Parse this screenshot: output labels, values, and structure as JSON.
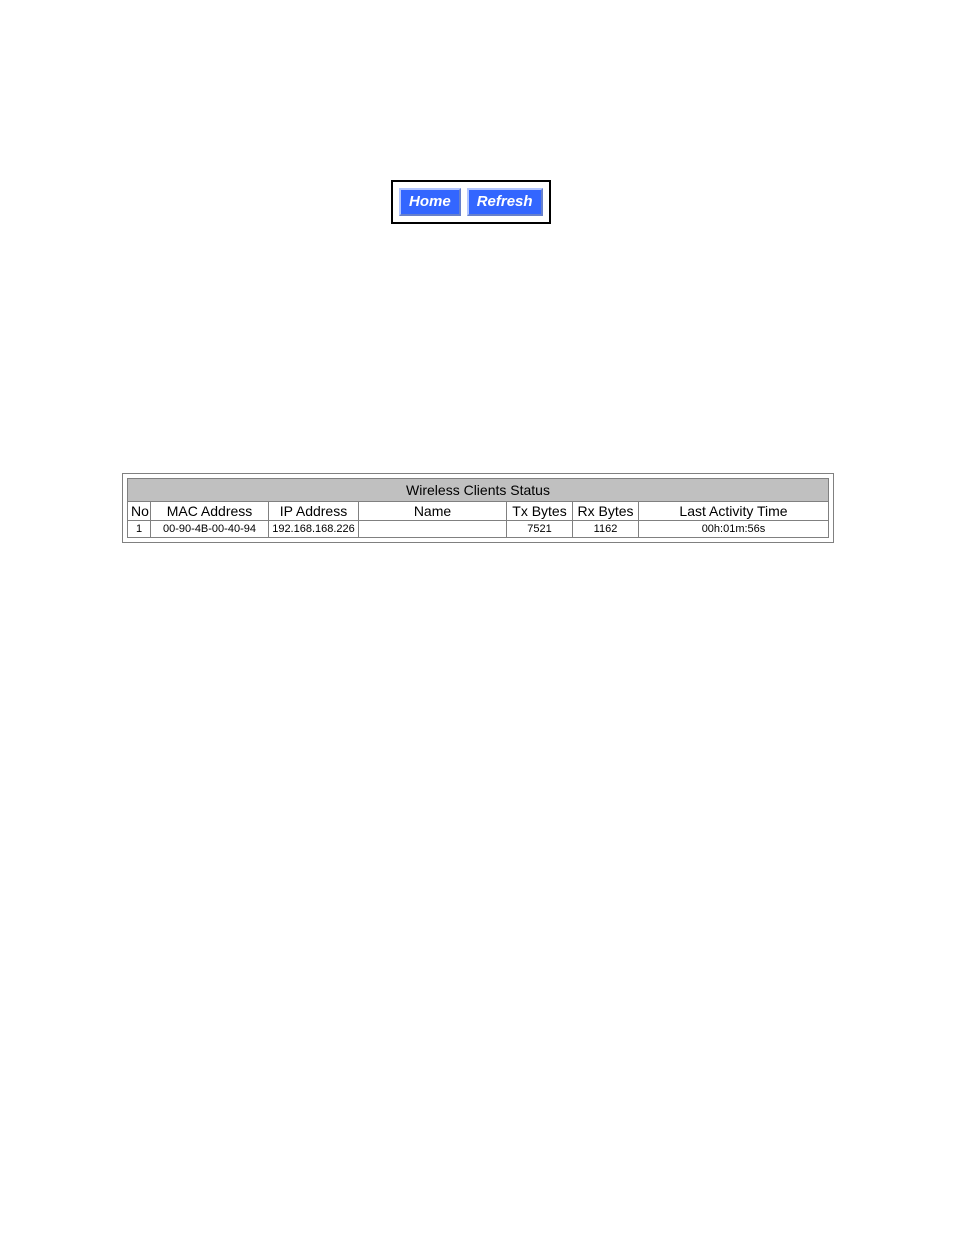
{
  "buttons": {
    "home_label": "Home",
    "refresh_label": "Refresh",
    "bg_color": "#3366ff",
    "text_color": "#ffffff"
  },
  "table": {
    "title": "Wireless Clients Status",
    "title_bg_color": "#c0c0c0",
    "border_color": "#808080",
    "columns": {
      "no": "No.",
      "mac": "MAC Address",
      "ip": "IP Address",
      "name": "Name",
      "tx": "Tx Bytes",
      "rx": "Rx Bytes",
      "time": "Last Activity Time"
    },
    "rows": [
      {
        "no": "1",
        "mac": "00-90-4B-00-40-94",
        "ip": "192.168.168.226",
        "name": "",
        "tx": "7521",
        "rx": "1162",
        "time": "00h:01m:56s"
      }
    ]
  }
}
